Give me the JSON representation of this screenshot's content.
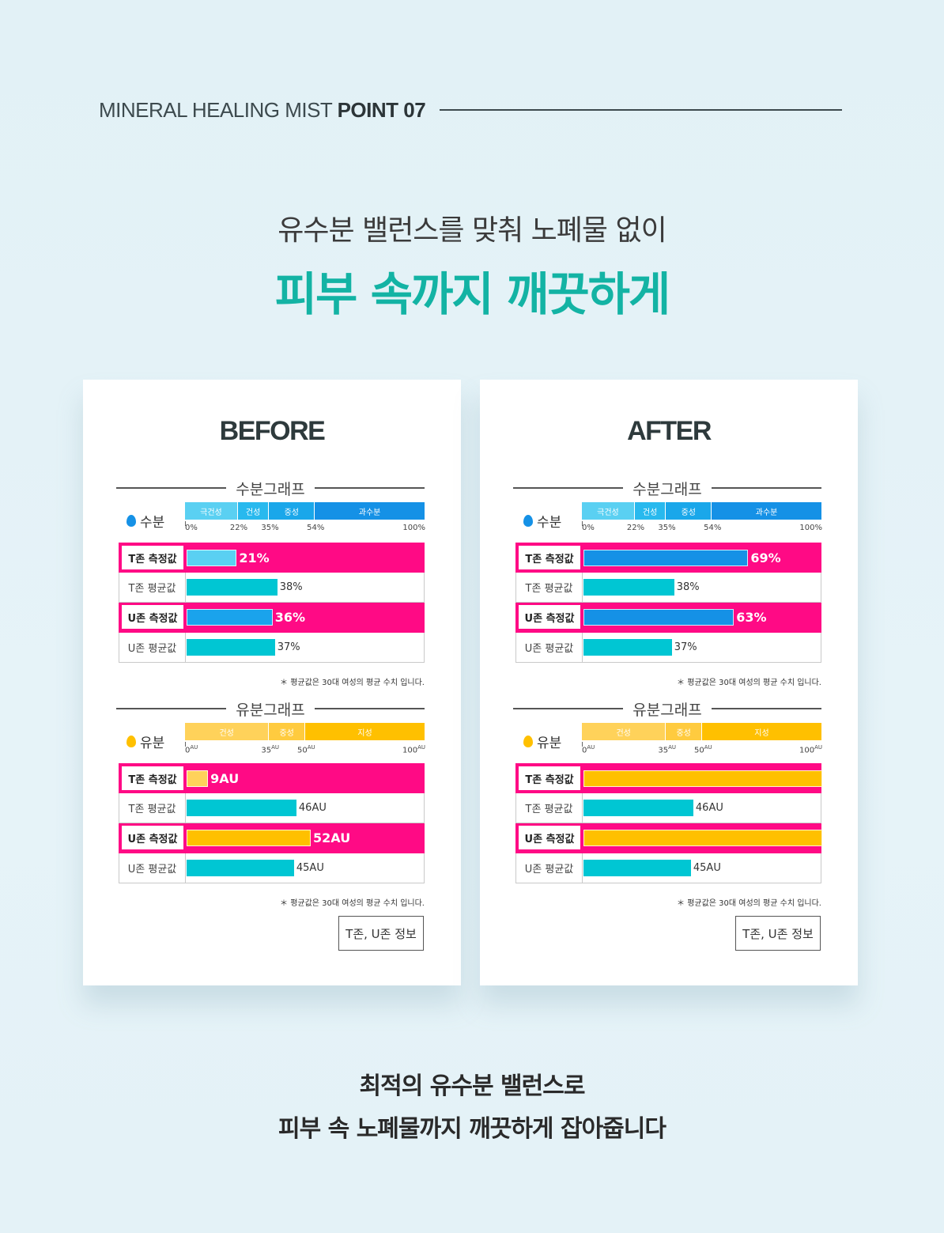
{
  "header": {
    "prefix": "MINERAL HEALING MIST ",
    "point": "POINT 07"
  },
  "subtitle": "유수분 밸런스를 맞춰 노폐물 없이",
  "title": "피부 속까지 깨끗하게",
  "footer": {
    "line1": "최적의 유수분 밸런스로",
    "line2": "피부 속 노폐물까지 깨끗하게 잡아줍니다"
  },
  "colors": {
    "measure_row": "#ff0a85",
    "avg_bar": "#00c6d3",
    "moisture_low": "#5ad0f2",
    "moisture_high": "#1591e6",
    "oil_low": "#ffd25a",
    "oil_high": "#ffc000",
    "teal_title": "#13b3a4"
  },
  "chart_data": [
    {
      "type": "bar",
      "panel": "BEFORE",
      "moisture": {
        "heading": "수분그래프",
        "legend": "수분",
        "icon": "blue-drop-icon",
        "zones": [
          {
            "label": "극건성",
            "from": 0,
            "to": 22,
            "color": "#5ad0f2"
          },
          {
            "label": "건성",
            "from": 22,
            "to": 35,
            "color": "#28b9ee"
          },
          {
            "label": "중성",
            "from": 35,
            "to": 54,
            "color": "#1aa7ea"
          },
          {
            "label": "과수분",
            "from": 54,
            "to": 100,
            "color": "#1591e6"
          }
        ],
        "ticks": [
          "0%",
          "22%",
          "35%",
          "54%",
          "100%"
        ],
        "tick_values": [
          0,
          22,
          35,
          54,
          100
        ],
        "rows": [
          {
            "label": "T존 측정값",
            "measured": true,
            "value": 21,
            "text": "21%",
            "color": "#5ad0f2"
          },
          {
            "label": "T존 평균값",
            "measured": false,
            "value": 38,
            "text": "38%",
            "color": "#00c6d3"
          },
          {
            "label": "U존 측정값",
            "measured": true,
            "value": 36,
            "text": "36%",
            "color": "#1aa3ec"
          },
          {
            "label": "U존 평균값",
            "measured": false,
            "value": 37,
            "text": "37%",
            "color": "#00c6d3"
          }
        ],
        "note": "＊ 평균값은 30대 여성의 평균 수치 입니다."
      },
      "oil": {
        "heading": "유분그래프",
        "legend": "유분",
        "icon": "yellow-drop-icon",
        "zones": [
          {
            "label": "건성",
            "from": 0,
            "to": 35,
            "color": "#ffd25a"
          },
          {
            "label": "중성",
            "from": 35,
            "to": 50,
            "color": "#ffcb3f"
          },
          {
            "label": "지성",
            "from": 50,
            "to": 100,
            "color": "#ffc000"
          }
        ],
        "ticks": [
          "0",
          "35",
          "50",
          "100"
        ],
        "tick_values": [
          0,
          35,
          50,
          100
        ],
        "tick_unit": "AU",
        "rows": [
          {
            "label": "T존 측정값",
            "measured": true,
            "value": 9,
            "text": "9AU",
            "color": "#ffd25a"
          },
          {
            "label": "T존 평균값",
            "measured": false,
            "value": 46,
            "text": "46AU",
            "color": "#00c6d3"
          },
          {
            "label": "U존 측정값",
            "measured": true,
            "value": 52,
            "text": "52AU",
            "color": "#ffc000"
          },
          {
            "label": "U존 평균값",
            "measured": false,
            "value": 45,
            "text": "45AU",
            "color": "#00c6d3"
          }
        ],
        "note": "＊ 평균값은 30대 여성의 평균 수치 입니다."
      },
      "info_button": "T존, U존 정보"
    },
    {
      "type": "bar",
      "panel": "AFTER",
      "moisture": {
        "heading": "수분그래프",
        "legend": "수분",
        "icon": "blue-drop-icon",
        "zones": [
          {
            "label": "극건성",
            "from": 0,
            "to": 22,
            "color": "#5ad0f2"
          },
          {
            "label": "건성",
            "from": 22,
            "to": 35,
            "color": "#28b9ee"
          },
          {
            "label": "중성",
            "from": 35,
            "to": 54,
            "color": "#1aa7ea"
          },
          {
            "label": "과수분",
            "from": 54,
            "to": 100,
            "color": "#1591e6"
          }
        ],
        "ticks": [
          "0%",
          "22%",
          "35%",
          "54%",
          "100%"
        ],
        "tick_values": [
          0,
          22,
          35,
          54,
          100
        ],
        "rows": [
          {
            "label": "T존 측정값",
            "measured": true,
            "value": 69,
            "text": "69%",
            "color": "#1591e6"
          },
          {
            "label": "T존 평균값",
            "measured": false,
            "value": 38,
            "text": "38%",
            "color": "#00c6d3"
          },
          {
            "label": "U존 측정값",
            "measured": true,
            "value": 63,
            "text": "63%",
            "color": "#1591e6"
          },
          {
            "label": "U존 평균값",
            "measured": false,
            "value": 37,
            "text": "37%",
            "color": "#00c6d3"
          }
        ],
        "note": "＊ 평균값은 30대 여성의 평균 수치 입니다."
      },
      "oil": {
        "heading": "유분그래프",
        "legend": "유분",
        "icon": "yellow-drop-icon",
        "zones": [
          {
            "label": "건성",
            "from": 0,
            "to": 35,
            "color": "#ffd25a"
          },
          {
            "label": "중성",
            "from": 35,
            "to": 50,
            "color": "#ffcb3f"
          },
          {
            "label": "지성",
            "from": 50,
            "to": 100,
            "color": "#ffc000"
          }
        ],
        "ticks": [
          "0",
          "35",
          "50",
          "100"
        ],
        "tick_values": [
          0,
          35,
          50,
          100
        ],
        "tick_unit": "AU",
        "rows": [
          {
            "label": "T존 측정값",
            "measured": true,
            "value": 100,
            "text": "",
            "color": "#ffc000"
          },
          {
            "label": "T존 평균값",
            "measured": false,
            "value": 46,
            "text": "46AU",
            "color": "#00c6d3"
          },
          {
            "label": "U존 측정값",
            "measured": true,
            "value": 100,
            "text": "",
            "color": "#ffc000"
          },
          {
            "label": "U존 평균값",
            "measured": false,
            "value": 45,
            "text": "45AU",
            "color": "#00c6d3"
          }
        ],
        "note": "＊ 평균값은 30대 여성의 평균 수치 입니다."
      },
      "info_button": "T존, U존 정보"
    }
  ]
}
